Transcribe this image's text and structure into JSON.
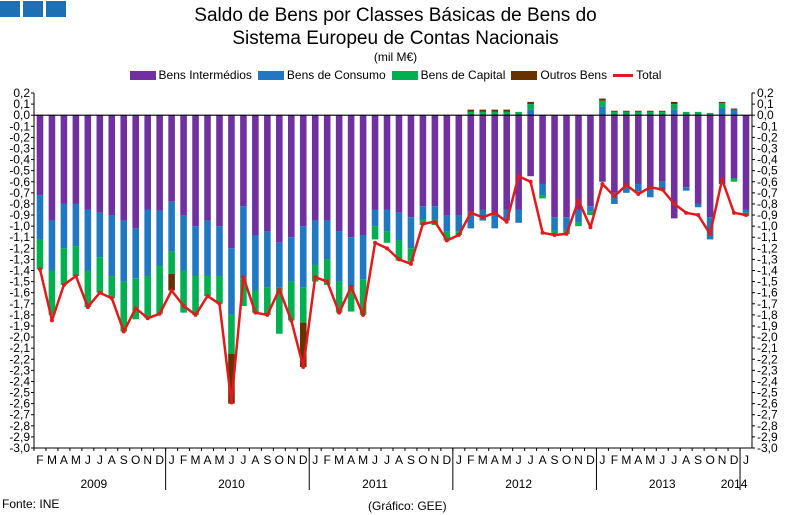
{
  "logo": {
    "blocks": 3,
    "color": "#1f6fb4"
  },
  "title_line1": "Saldo de Bens por Classes Básicas de Bens do",
  "title_line2": "Sistema Europeu de Contas Nacionais",
  "unit": "(mil M€)",
  "source": "Fonte: INE",
  "credit": "(Gráfico: GEE)",
  "chart_data": {
    "type": "bar",
    "subtype": "stacked bar with line",
    "title": "Saldo de Bens por Classes Básicas de Bens do Sistema Europeu de Contas Nacionais",
    "ylabel": "(mil M€)",
    "ylim": [
      -3.0,
      0.2
    ],
    "ytick_step": 0.1,
    "yticks": [
      "0,2",
      "0,1",
      "0,0",
      "-0,1",
      "-0,2",
      "-0,3",
      "-0,4",
      "-0,5",
      "-0,6",
      "-0,7",
      "-0,8",
      "-0,9",
      "-1,0",
      "-1,1",
      "-1,2",
      "-1,3",
      "-1,4",
      "-1,5",
      "-1,6",
      "-1,7",
      "-1,8",
      "-1,9",
      "-2,0",
      "-2,1",
      "-2,2",
      "-2,3",
      "-2,4",
      "-2,5",
      "-2,6",
      "-2,7",
      "-2,8",
      "-2,9",
      "-3,0"
    ],
    "month_labels": [
      "F",
      "M",
      "A",
      "M",
      "J",
      "J",
      "A",
      "S",
      "O",
      "N",
      "D",
      "J",
      "F",
      "M",
      "A",
      "M",
      "J",
      "J",
      "A",
      "S",
      "O",
      "N",
      "D",
      "J",
      "F",
      "M",
      "A",
      "M",
      "J",
      "J",
      "A",
      "S",
      "O",
      "N",
      "D",
      "J",
      "F",
      "M",
      "A",
      "M",
      "J",
      "J",
      "A",
      "S",
      "O",
      "N",
      "D",
      "J",
      "F",
      "M",
      "A",
      "M",
      "J",
      "J",
      "A",
      "S",
      "O",
      "N",
      "D",
      "J"
    ],
    "year_labels": [
      "2009",
      "2010",
      "2011",
      "2012",
      "2013",
      "2014"
    ],
    "year_label_months": [
      5,
      16.5,
      28.5,
      40.5,
      52.5,
      58.5
    ],
    "year_separator_months": [
      11,
      23,
      35,
      47,
      59
    ],
    "legend": [
      "Bens Intermédios",
      "Bens de Consumo",
      "Bens de Capital",
      "Outros Bens",
      "Total"
    ],
    "colors": {
      "intermedios": "#7030a0",
      "consumo": "#1f78c1",
      "capital": "#00b050",
      "outros": "#663300",
      "total": "#e31a1c"
    },
    "series": [
      {
        "name": "Bens Intermédios",
        "values": [
          -0.72,
          -0.95,
          -0.8,
          -0.8,
          -0.85,
          -0.88,
          -0.9,
          -0.95,
          -1.02,
          -0.85,
          -0.86,
          -0.78,
          -0.9,
          -1.0,
          -0.95,
          -1.0,
          -1.2,
          -0.82,
          -1.08,
          -1.05,
          -1.15,
          -1.1,
          -1.0,
          -0.95,
          -0.95,
          -1.05,
          -1.1,
          -1.08,
          -0.85,
          -0.85,
          -0.88,
          -0.92,
          -0.82,
          -0.82,
          -0.9,
          -0.9,
          -0.87,
          -0.85,
          -0.9,
          -0.85,
          -0.85,
          -0.55,
          -0.62,
          -0.92,
          -0.92,
          -0.85,
          -0.82,
          -0.6,
          -0.7,
          -0.65,
          -0.62,
          -0.66,
          -0.6,
          -0.93,
          -0.65,
          -0.8,
          -0.92,
          -0.62,
          -0.57,
          -0.85
        ]
      },
      {
        "name": "Bens de Consumo",
        "values": [
          -0.4,
          -0.45,
          -0.4,
          -0.38,
          -0.55,
          -0.4,
          -0.55,
          -0.55,
          -0.45,
          -0.6,
          -0.5,
          -0.45,
          -0.5,
          -0.45,
          -0.5,
          -0.45,
          -0.6,
          -0.65,
          -0.5,
          -0.5,
          -0.4,
          -0.4,
          -0.55,
          -0.4,
          -0.35,
          -0.45,
          -0.45,
          -0.4,
          -0.15,
          -0.2,
          -0.25,
          -0.28,
          -0.12,
          -0.12,
          -0.15,
          -0.15,
          -0.15,
          -0.1,
          -0.12,
          -0.1,
          -0.12,
          0.05,
          -0.1,
          -0.12,
          -0.12,
          -0.12,
          -0.05,
          0.08,
          -0.1,
          -0.05,
          -0.07,
          -0.08,
          -0.08,
          0.05,
          -0.03,
          -0.03,
          -0.2,
          0.06,
          0.05,
          -0.03
        ]
      },
      {
        "name": "Bens de Capital",
        "values": [
          -0.27,
          -0.4,
          -0.33,
          -0.27,
          -0.33,
          -0.32,
          -0.2,
          -0.45,
          -0.37,
          -0.38,
          -0.43,
          -0.2,
          -0.38,
          -0.35,
          -0.18,
          -0.25,
          -0.35,
          -0.25,
          -0.2,
          -0.25,
          -0.42,
          -0.35,
          -0.32,
          -0.15,
          -0.23,
          -0.28,
          -0.22,
          -0.32,
          -0.12,
          -0.1,
          -0.18,
          -0.12,
          -0.05,
          -0.05,
          -0.08,
          -0.03,
          0.03,
          0.03,
          0.03,
          0.03,
          0.03,
          0.05,
          -0.03,
          -0.03,
          -0.03,
          -0.03,
          -0.03,
          0.05,
          0.03,
          0.03,
          0.03,
          0.03,
          0.03,
          0.05,
          0.03,
          0.03,
          0.02,
          0.05,
          -0.03,
          -0.03
        ]
      },
      {
        "name": "Outros Bens",
        "values": [
          0,
          0,
          0,
          0,
          0,
          0,
          0,
          0,
          0,
          0,
          0,
          -0.15,
          0,
          0,
          0,
          0,
          -0.45,
          0,
          0,
          0,
          0,
          0,
          -0.4,
          0,
          0,
          0,
          0,
          0,
          0,
          0,
          0,
          0,
          0,
          0,
          0,
          0,
          0.02,
          0.02,
          0.02,
          0.02,
          0,
          0.02,
          0,
          0,
          0,
          0,
          0,
          0.02,
          0.01,
          0.01,
          0.01,
          0.01,
          0.01,
          0.02,
          0,
          0,
          0,
          0.01,
          0.01,
          0
        ]
      },
      {
        "name": "Total",
        "values": [
          -1.39,
          -1.85,
          -1.53,
          -1.45,
          -1.73,
          -1.6,
          -1.65,
          -1.95,
          -1.74,
          -1.83,
          -1.79,
          -1.58,
          -1.72,
          -1.8,
          -1.63,
          -1.7,
          -2.59,
          -1.46,
          -1.78,
          -1.8,
          -1.57,
          -1.85,
          -2.27,
          -1.46,
          -1.5,
          -1.78,
          -1.55,
          -1.8,
          -1.15,
          -1.2,
          -1.3,
          -1.34,
          -0.98,
          -0.96,
          -1.13,
          -1.08,
          -0.88,
          -0.92,
          -0.88,
          -0.96,
          -0.55,
          -0.6,
          -1.06,
          -1.08,
          -1.07,
          -0.77,
          -1.01,
          -0.62,
          -0.73,
          -0.63,
          -0.71,
          -0.65,
          -0.67,
          -0.8,
          -0.88,
          -0.9,
          -1.07,
          -0.58,
          -0.88,
          -0.9
        ]
      }
    ]
  }
}
